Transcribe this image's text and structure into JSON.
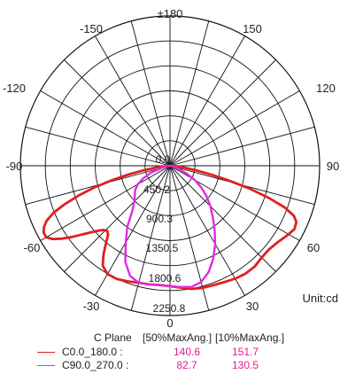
{
  "chart_data": {
    "type": "polar",
    "unit_label": "Unit:cd",
    "angle_labels": {
      "top": "±180",
      "bottom": "0",
      "upper_left": [
        "-150",
        "-120"
      ],
      "upper_right": [
        "150",
        "120"
      ],
      "left": "-90",
      "right": "90",
      "lower_left": [
        "-60",
        "-30"
      ],
      "lower_right": [
        "60",
        "30"
      ]
    },
    "angle_label_values": {
      "±180": 180,
      "-150": -150,
      "150": 150,
      "-120": -120,
      "120": 120,
      "-90": -90,
      "90": 90,
      "-60": -60,
      "60": 60,
      "-30": -30,
      "30": 30,
      "0": 0
    },
    "radial_ticks": [
      "0.0",
      "450.2",
      "900.3",
      "1350.5",
      "1800.6",
      "2250.8"
    ],
    "radial_tick_values": [
      0,
      450.2,
      900.3,
      1350.5,
      1800.6,
      2250.8
    ],
    "r_max": 2250.8,
    "grid": true,
    "series": [
      {
        "name": "C0.0_180.0 :",
        "color": "#e01f1f",
        "beam_50": "140.6",
        "beam_10": "151.7",
        "points": [
          [
            -90,
            0
          ],
          [
            -85,
            150
          ],
          [
            -80,
            420
          ],
          [
            -78,
            640
          ],
          [
            -76,
            900
          ],
          [
            -74,
            1180
          ],
          [
            -72,
            1440
          ],
          [
            -70,
            1680
          ],
          [
            -68,
            1890
          ],
          [
            -66,
            2030
          ],
          [
            -64,
            2110
          ],
          [
            -62,
            2150
          ],
          [
            -60,
            2150
          ],
          [
            -58,
            2080
          ],
          [
            -56,
            1960
          ],
          [
            -54,
            1820
          ],
          [
            -52,
            1680
          ],
          [
            -50,
            1560
          ],
          [
            -48,
            1460
          ],
          [
            -46,
            1390
          ],
          [
            -44,
            1360
          ],
          [
            -42,
            1390
          ],
          [
            -40,
            1490
          ],
          [
            -37,
            1660
          ],
          [
            -34,
            1810
          ],
          [
            -30,
            1880
          ],
          [
            -25,
            1880
          ],
          [
            -20,
            1850
          ],
          [
            -15,
            1820
          ],
          [
            -10,
            1810
          ],
          [
            -5,
            1800
          ],
          [
            0,
            1810
          ],
          [
            5,
            1840
          ],
          [
            10,
            1880
          ],
          [
            15,
            1900
          ],
          [
            20,
            1910
          ],
          [
            25,
            1930
          ],
          [
            30,
            1960
          ],
          [
            35,
            1980
          ],
          [
            40,
            1980
          ],
          [
            45,
            1950
          ],
          [
            50,
            1950
          ],
          [
            55,
            1990
          ],
          [
            60,
            2060
          ],
          [
            63,
            2100
          ],
          [
            66,
            2080
          ],
          [
            68,
            2010
          ],
          [
            70,
            1840
          ],
          [
            72,
            1560
          ],
          [
            74,
            1240
          ],
          [
            76,
            900
          ],
          [
            78,
            620
          ],
          [
            80,
            400
          ],
          [
            83,
            200
          ],
          [
            86,
            80
          ],
          [
            90,
            0
          ]
        ]
      },
      {
        "name": "C90.0_270.0 :",
        "color": "#e22ae2",
        "beam_50": "82.7",
        "beam_10": "130.5",
        "points": [
          [
            -90,
            0
          ],
          [
            -80,
            80
          ],
          [
            -70,
            300
          ],
          [
            -65,
            440
          ],
          [
            -60,
            560
          ],
          [
            -55,
            640
          ],
          [
            -50,
            690
          ],
          [
            -45,
            760
          ],
          [
            -40,
            880
          ],
          [
            -35,
            1120
          ],
          [
            -30,
            1330
          ],
          [
            -25,
            1590
          ],
          [
            -20,
            1760
          ],
          [
            -15,
            1820
          ],
          [
            -10,
            1810
          ],
          [
            -5,
            1800
          ],
          [
            0,
            1810
          ],
          [
            5,
            1830
          ],
          [
            10,
            1850
          ],
          [
            15,
            1810
          ],
          [
            20,
            1700
          ],
          [
            25,
            1540
          ],
          [
            30,
            1360
          ],
          [
            35,
            1170
          ],
          [
            40,
            1000
          ],
          [
            45,
            860
          ],
          [
            50,
            720
          ],
          [
            55,
            580
          ],
          [
            60,
            430
          ],
          [
            65,
            270
          ],
          [
            70,
            140
          ],
          [
            80,
            40
          ],
          [
            90,
            0
          ]
        ]
      }
    ]
  },
  "legend": {
    "header_plane": "C Plane",
    "header_50": "[50%MaxAng.]",
    "header_10": "[10%MaxAng.]",
    "value_color": "#e01f8f"
  }
}
